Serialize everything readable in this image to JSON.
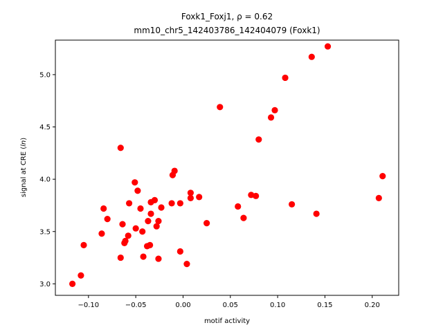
{
  "chart_data": {
    "type": "scatter",
    "title": "Foxk1_Foxj1, ρ = 0.62",
    "subtitle": "mm10_chr5_142403786_142404079 (Foxk1)",
    "xlabel": "motif activity",
    "ylabel": "signal at CRE (ln)",
    "xlim": [
      -0.135,
      0.228
    ],
    "ylim": [
      2.89,
      5.33
    ],
    "xticks": [
      -0.1,
      -0.05,
      0.0,
      0.05,
      0.1,
      0.15,
      0.2
    ],
    "xtick_labels": [
      "−0.10",
      "−0.05",
      "0.00",
      "0.05",
      "0.10",
      "0.15",
      "0.20"
    ],
    "yticks": [
      3.0,
      3.5,
      4.0,
      4.5,
      5.0
    ],
    "ytick_labels": [
      "3.0",
      "3.5",
      "4.0",
      "4.5",
      "5.0"
    ],
    "grid": false,
    "marker_color": "#ff0000",
    "points": [
      {
        "x": -0.117,
        "y": 3.0
      },
      {
        "x": -0.108,
        "y": 3.08
      },
      {
        "x": -0.105,
        "y": 3.37
      },
      {
        "x": -0.086,
        "y": 3.48
      },
      {
        "x": -0.084,
        "y": 3.72
      },
      {
        "x": -0.08,
        "y": 3.62
      },
      {
        "x": -0.066,
        "y": 4.3
      },
      {
        "x": -0.066,
        "y": 3.25
      },
      {
        "x": -0.064,
        "y": 3.57
      },
      {
        "x": -0.062,
        "y": 3.39
      },
      {
        "x": -0.061,
        "y": 3.41
      },
      {
        "x": -0.058,
        "y": 3.46
      },
      {
        "x": -0.057,
        "y": 3.77
      },
      {
        "x": -0.051,
        "y": 3.97
      },
      {
        "x": -0.05,
        "y": 3.53
      },
      {
        "x": -0.048,
        "y": 3.89
      },
      {
        "x": -0.045,
        "y": 3.72
      },
      {
        "x": -0.043,
        "y": 3.5
      },
      {
        "x": -0.042,
        "y": 3.26
      },
      {
        "x": -0.038,
        "y": 3.36
      },
      {
        "x": -0.037,
        "y": 3.6
      },
      {
        "x": -0.035,
        "y": 3.37
      },
      {
        "x": -0.034,
        "y": 3.67
      },
      {
        "x": -0.034,
        "y": 3.78
      },
      {
        "x": -0.03,
        "y": 3.8
      },
      {
        "x": -0.028,
        "y": 3.55
      },
      {
        "x": -0.026,
        "y": 3.24
      },
      {
        "x": -0.026,
        "y": 3.6
      },
      {
        "x": -0.023,
        "y": 3.73
      },
      {
        "x": -0.012,
        "y": 3.77
      },
      {
        "x": -0.011,
        "y": 4.04
      },
      {
        "x": -0.009,
        "y": 4.08
      },
      {
        "x": -0.003,
        "y": 3.31
      },
      {
        "x": -0.003,
        "y": 3.77
      },
      {
        "x": 0.004,
        "y": 3.19
      },
      {
        "x": 0.008,
        "y": 3.87
      },
      {
        "x": 0.008,
        "y": 3.82
      },
      {
        "x": 0.017,
        "y": 3.83
      },
      {
        "x": 0.025,
        "y": 3.58
      },
      {
        "x": 0.039,
        "y": 4.69
      },
      {
        "x": 0.058,
        "y": 3.74
      },
      {
        "x": 0.064,
        "y": 3.63
      },
      {
        "x": 0.072,
        "y": 3.85
      },
      {
        "x": 0.077,
        "y": 3.84
      },
      {
        "x": 0.08,
        "y": 4.38
      },
      {
        "x": 0.093,
        "y": 4.59
      },
      {
        "x": 0.097,
        "y": 4.66
      },
      {
        "x": 0.108,
        "y": 4.97
      },
      {
        "x": 0.115,
        "y": 3.76
      },
      {
        "x": 0.136,
        "y": 5.17
      },
      {
        "x": 0.141,
        "y": 3.67
      },
      {
        "x": 0.153,
        "y": 5.27
      },
      {
        "x": 0.207,
        "y": 3.82
      },
      {
        "x": 0.211,
        "y": 4.03
      }
    ]
  }
}
